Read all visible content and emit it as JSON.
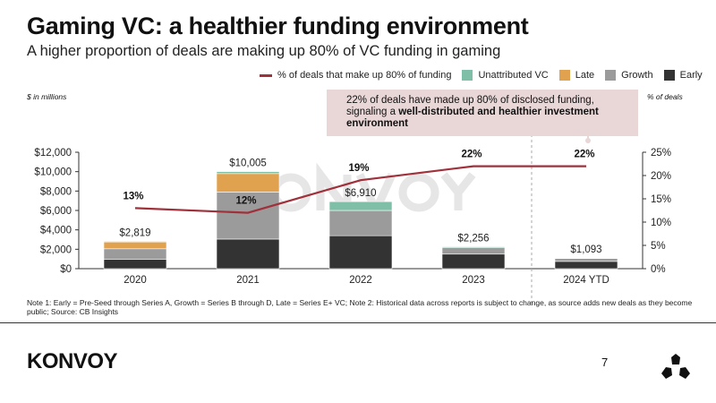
{
  "title": "Gaming VC: a healthier funding environment",
  "subtitle": "A higher proportion of deals are making up 80% of VC funding in gaming",
  "callout": {
    "text_plain": "22% of deals have made up 80% of disclosed funding, signaling a ",
    "text_bold": "well-distributed and healthier investment environment"
  },
  "note": "Note 1: Early = Pre-Seed through Series A, Growth = Series B through D, Late = Series E+ VC; Note 2: Historical data across reports is subject to change, as source adds new deals as they become public; Source: CB Insights",
  "footer": {
    "logo": "KONVOY",
    "page": "7"
  },
  "watermark": "KONVOY",
  "colors": {
    "early": "#333333",
    "growth": "#9b9b9b",
    "late": "#e0a24e",
    "unattributed": "#7fbfa8",
    "line": "#a0303a",
    "callout": "#e9d6d7"
  },
  "chart_data": {
    "type": "bar",
    "categories": [
      "2020",
      "2021",
      "2022",
      "2023",
      "2024 YTD"
    ],
    "series": [
      {
        "name": "Early",
        "values": [
          950,
          3050,
          3400,
          1500,
          750
        ]
      },
      {
        "name": "Growth",
        "values": [
          1100,
          4850,
          2600,
          650,
          300
        ]
      },
      {
        "name": "Late",
        "values": [
          700,
          1900,
          0,
          0,
          0
        ]
      },
      {
        "name": "Unattributed VC",
        "values": [
          69,
          205,
          910,
          106,
          43
        ]
      }
    ],
    "totals": [
      "$2,819",
      "$10,005",
      "$6,910",
      "$2,256",
      "$1,093"
    ],
    "total_values": [
      2819,
      10005,
      6910,
      2256,
      1093
    ],
    "line": {
      "name": "% of deals that make up 80% of funding",
      "values": [
        13,
        12,
        19,
        22,
        22
      ],
      "labels": [
        "13%",
        "12%",
        "19%",
        "22%",
        "22%"
      ]
    },
    "ylabel": "$ in millions",
    "y2label": "% of deals",
    "ylim": [
      0,
      12000
    ],
    "y2lim": [
      0,
      25
    ],
    "yticks": [
      "$0",
      "$2,000",
      "$4,000",
      "$6,000",
      "$8,000",
      "$10,000",
      "$12,000"
    ],
    "y2ticks": [
      "0%",
      "5%",
      "10%",
      "15%",
      "20%",
      "25%"
    ],
    "legend": [
      "% of deals that make up 80% of funding",
      "Unattributed VC",
      "Late",
      "Growth",
      "Early"
    ],
    "legend_position": "top"
  }
}
